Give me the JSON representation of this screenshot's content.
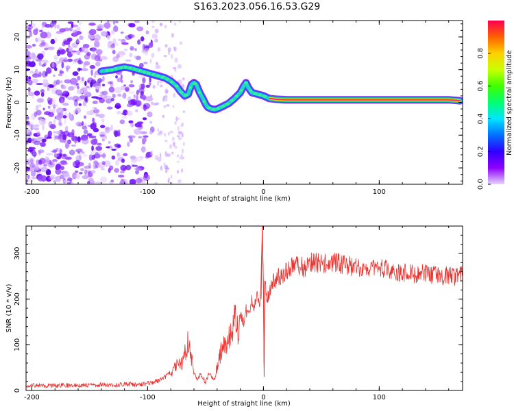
{
  "title": "S163.2023.056.16.53.G29",
  "colors": {
    "snr_line": "#e8332f",
    "ridge_peak": "#ff2a70",
    "ridge_halo": "#21d4c5",
    "blob_dark": "#6a00ff",
    "blob_light": "#d9b8ff"
  },
  "chart_data": [
    {
      "type": "heatmap",
      "name": "spectrogram",
      "xlabel": "Height of straight line (km)",
      "ylabel": "Frequency (Hz)",
      "xlim": [
        -205,
        172
      ],
      "ylim": [
        -25,
        25
      ],
      "xticks": [
        -200,
        -100,
        0,
        100
      ],
      "yticks": [
        -20,
        -10,
        0,
        10,
        20
      ],
      "ridge": {
        "x": [
          -140,
          -130,
          -125,
          -120,
          -115,
          -110,
          -105,
          -100,
          -95,
          -90,
          -85,
          -80,
          -75,
          -72,
          -68,
          -65,
          -62,
          -60,
          -58,
          -55,
          -52,
          -50,
          -48,
          -45,
          -42,
          -40,
          -35,
          -30,
          -25,
          -20,
          -17,
          -15,
          -13,
          -10,
          -5,
          0,
          5,
          10,
          20,
          40,
          60,
          80,
          100,
          120,
          140,
          160,
          170
        ],
        "y": [
          9.5,
          10,
          10.5,
          10.8,
          10.5,
          10,
          9.5,
          9,
          8.5,
          8,
          7.5,
          6.5,
          5,
          3.5,
          2,
          2.5,
          5.5,
          6,
          5.5,
          3,
          1,
          -0.5,
          -1.5,
          -2,
          -2.2,
          -2,
          -1.2,
          -0.3,
          1.2,
          3,
          5,
          6,
          4.5,
          3,
          2.5,
          2,
          1.2,
          1,
          0.8,
          0.8,
          0.8,
          0.8,
          0.8,
          0.8,
          0.8,
          0.8,
          0.5
        ]
      },
      "colorbar": {
        "label": "Normalized spectral amplitude",
        "range": [
          0,
          1
        ],
        "ticks": [
          "0.0",
          "0.2",
          "0.4",
          "0.6",
          "0.8"
        ],
        "stops": [
          "#e6d5ff",
          "#8e00ff",
          "#2f00ff",
          "#0070ff",
          "#00e5ff",
          "#00ff70",
          "#40ff00",
          "#c8ff00",
          "#ffd000",
          "#ff6000",
          "#ff0050"
        ]
      }
    },
    {
      "type": "line",
      "name": "snr",
      "xlabel": "Height of straight line (km)",
      "ylabel": "SNR (10 * v/v)",
      "xlim": [
        -205,
        172
      ],
      "ylim": [
        0,
        360
      ],
      "xticks": [
        -200,
        -100,
        0,
        100
      ],
      "yticks": [
        0,
        100,
        200,
        300
      ],
      "series": [
        {
          "x": [
            -205,
            -190,
            -175,
            -160,
            -150,
            -140,
            -130,
            -120,
            -110,
            -100,
            -95,
            -90,
            -85,
            -80,
            -75,
            -70,
            -67,
            -65,
            -62,
            -60,
            -57,
            -55,
            -52,
            -50,
            -47,
            -45,
            -42,
            -40,
            -38,
            -35,
            -32,
            -30,
            -27,
            -25,
            -22,
            -20,
            -17,
            -15,
            -12,
            -10,
            -8,
            -5,
            -3,
            -2,
            -1,
            0,
            0.5,
            1,
            2,
            3,
            5,
            8,
            10,
            13,
            15,
            18,
            20,
            25,
            30,
            35,
            40,
            50,
            60,
            70,
            80,
            90,
            100,
            110,
            120,
            130,
            140,
            150,
            160,
            165,
            170,
            172
          ],
          "y": [
            12,
            10,
            11,
            12,
            11,
            13,
            12,
            14,
            13,
            15,
            18,
            22,
            30,
            40,
            55,
            60,
            85,
            110,
            70,
            40,
            22,
            35,
            28,
            18,
            40,
            30,
            22,
            55,
            70,
            110,
            85,
            130,
            120,
            150,
            140,
            160,
            150,
            175,
            165,
            200,
            180,
            215,
            190,
            240,
            355,
            260,
            30,
            245,
            220,
            200,
            215,
            240,
            235,
            250,
            245,
            255,
            260,
            272,
            275,
            268,
            280,
            278,
            282,
            275,
            270,
            265,
            268,
            262,
            258,
            255,
            257,
            250,
            252,
            248,
            255,
            252
          ]
        }
      ]
    }
  ]
}
